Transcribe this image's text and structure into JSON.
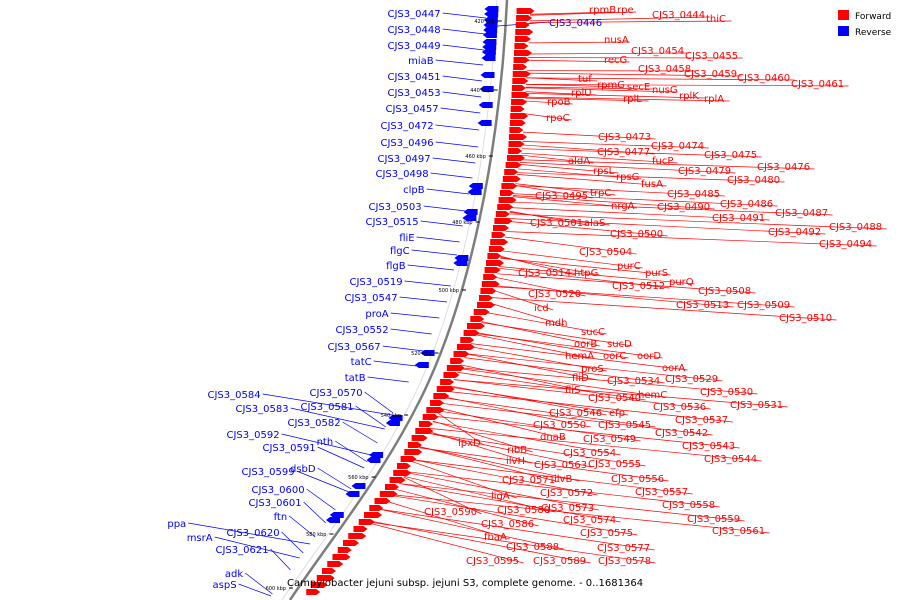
{
  "caption": "Campylobacter jejuni subsp. jejuni S3, complete genome. - 0..1681364",
  "legend": [
    {
      "label": "Forward",
      "color": "#ff0000"
    },
    {
      "label": "Reverse",
      "color": "#0000ff"
    }
  ],
  "colors": {
    "forward": "#ff0000",
    "reverse": "#0000ff",
    "backbone": "#888888"
  },
  "scale_labels": [
    "420 kbp",
    "440 kbp",
    "460 kbp",
    "480 kbp",
    "500 kbp",
    "520 kbp",
    "540 kbp",
    "560 kbp",
    "580 kbp",
    "600 kbp"
  ],
  "genes_forward": [
    "rpmB",
    "rpe",
    "CJS3_0444",
    "thiC",
    "nusA",
    "CJS3_0454",
    "recG",
    "CJS3_0455",
    "CJS3_0458",
    "CJS3_0459",
    "CJS3_0460",
    "CJS3_0461",
    "tuf",
    "rpmG",
    "secE",
    "nusG",
    "rplU",
    "rplL",
    "rplK",
    "rplA",
    "rpoB",
    "rpoC",
    "CJS3_0473",
    "CJS3_0474",
    "CJS3_0477",
    "CJS3_0475",
    "aldA",
    "fucP",
    "CJS3_0476",
    "rpsL",
    "CJS3_0479",
    "rpsG",
    "CJS3_0480",
    "fusA",
    "trpC",
    "CJS3_0485",
    "CJS3_0495",
    "CJS3_0486",
    "nrgA",
    "CJS3_0490",
    "CJS3_0487",
    "CJS3_0491",
    "CJS3_0488",
    "CJS3_0501",
    "alaS",
    "CJS3_0492",
    "CJS3_0500",
    "CJS3_0494",
    "CJS3_0504",
    "purC",
    "purS",
    "CJS3_0514",
    "htpG",
    "purQ",
    "CJS3_0512",
    "CJS3_0508",
    "CJS3_0520",
    "CJS3_0513",
    "CJS3_0509",
    "icd",
    "CJS3_0510",
    "mdh",
    "sucC",
    "oorB",
    "sucD",
    "hemA",
    "oorC",
    "oorD",
    "proS",
    "oorA",
    "fliD",
    "CJS3_0534",
    "CJS3_0529",
    "fliS",
    "CJS3_0530",
    "hemC",
    "CJS3_0540",
    "CJS3_0531",
    "CJS3_0536",
    "CJS3_0546",
    "efp",
    "CJS3_0537",
    "CJS3_0550",
    "CJS3_0545",
    "CJS3_0542",
    "dnaB",
    "CJS3_0549",
    "lpxD",
    "CJS3_0543",
    "ribB",
    "CJS3_0554",
    "CJS3_0544",
    "ilvH",
    "CJS3_0563",
    "CJS3_0555",
    "CJS3_0556",
    "CJS3_0571",
    "ilvB",
    "CJS3_0557",
    "ligA",
    "CJS3_0572",
    "CJS3_0558",
    "CJS3_0573",
    "CJS3_0590",
    "CJS3_0580",
    "CJS3_0574",
    "CJS3_0559",
    "CJS3_0586",
    "CJS3_0575",
    "CJS3_0561",
    "fbaA",
    "CJS3_0577",
    "CJS3_0588",
    "CJS3_0595",
    "CJS3_0589",
    "CJS3_0578"
  ],
  "genes_reverse": [
    "CJS3_0447",
    "CJS3_0446",
    "CJS3_0448",
    "CJS3_0449",
    "miaB",
    "CJS3_0451",
    "CJS3_0453",
    "CJS3_0457",
    "CJS3_0472",
    "CJS3_0496",
    "CJS3_0497",
    "CJS3_0498",
    "clpB",
    "CJS3_0503",
    "CJS3_0515",
    "fliE",
    "flgC",
    "flgB",
    "CJS3_0519",
    "CJS3_0547",
    "proA",
    "CJS3_0552",
    "CJS3_0567",
    "tatC",
    "tatB",
    "CJS3_0570",
    "CJS3_0584",
    "CJS3_0581",
    "CJS3_0583",
    "CJS3_0582",
    "CJS3_0592",
    "nth",
    "CJS3_0591",
    "CJS3_0599",
    "dsbD",
    "CJS3_0600",
    "CJS3_0601",
    "ftn",
    "ppa",
    "msrA",
    "CJS3_0620",
    "CJS3_0621",
    "adk",
    "aspS"
  ]
}
